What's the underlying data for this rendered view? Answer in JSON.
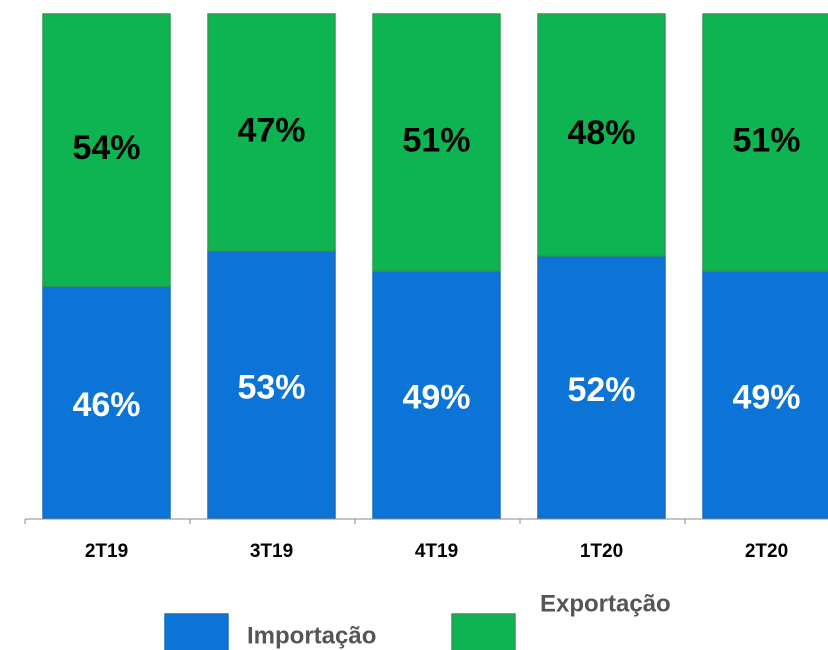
{
  "chart_data": {
    "type": "bar",
    "stacked": true,
    "categories": [
      "2T19",
      "3T19",
      "4T19",
      "1T20",
      "2T20"
    ],
    "series": [
      {
        "name": "Importação",
        "color": "#0b74d6",
        "label_color": "#ffffff",
        "values": [
          46,
          53,
          49,
          52,
          49
        ],
        "value_labels": [
          "46%",
          "53%",
          "49%",
          "52%",
          "49%"
        ]
      },
      {
        "name": "Exportação",
        "color": "#0db451",
        "label_color": "#000000",
        "values": [
          54,
          47,
          51,
          48,
          51
        ],
        "value_labels": [
          "54%",
          "47%",
          "51%",
          "48%",
          "51%"
        ]
      }
    ],
    "ylim": [
      0,
      100
    ]
  }
}
